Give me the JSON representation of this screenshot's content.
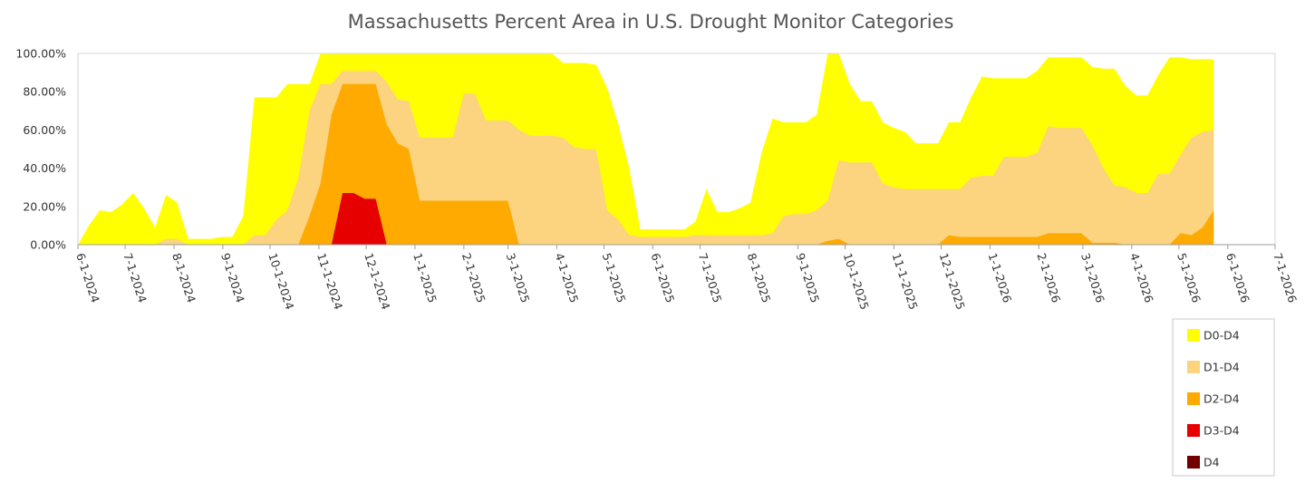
{
  "chart_data": {
    "type": "area",
    "title": "Massachusetts Percent Area in U.S. Drought Monitor Categories",
    "xlabel": "",
    "ylabel": "",
    "ylim": [
      0,
      100
    ],
    "xlim": [
      "6-1-2024",
      "7-1-2026"
    ],
    "grid": false,
    "stacked": false,
    "legend_position": "bottom-right",
    "y_ticks": [
      "0.00%",
      "20.00%",
      "40.00%",
      "60.00%",
      "80.00%",
      "100.00%"
    ],
    "x_ticks": [
      "6-1-2024",
      "7-1-2024",
      "8-1-2024",
      "9-1-2024",
      "10-1-2024",
      "11-1-2024",
      "12-1-2024",
      "1-1-2025",
      "2-1-2025",
      "3-1-2025",
      "4-1-2025",
      "5-1-2025",
      "6-1-2025",
      "7-1-2025",
      "8-1-2025",
      "9-1-2025",
      "10-1-2025",
      "11-1-2025",
      "12-1-2025",
      "1-1-2026",
      "2-1-2026",
      "3-1-2026",
      "4-1-2026",
      "5-1-2026",
      "6-1-2026",
      "7-1-2026"
    ],
    "series": [
      {
        "name": "D0-D4",
        "color": "#FFFF00",
        "points": [
          [
            "2024-06-01",
            0
          ],
          [
            "2024-06-08",
            10
          ],
          [
            "2024-06-15",
            18
          ],
          [
            "2024-06-22",
            17
          ],
          [
            "2024-06-29",
            21
          ],
          [
            "2024-07-06",
            27
          ],
          [
            "2024-07-13",
            19
          ],
          [
            "2024-07-20",
            9
          ],
          [
            "2024-07-27",
            26
          ],
          [
            "2024-08-03",
            22
          ],
          [
            "2024-08-10",
            3
          ],
          [
            "2024-08-17",
            3
          ],
          [
            "2024-08-24",
            3
          ],
          [
            "2024-08-31",
            4
          ],
          [
            "2024-09-07",
            4
          ],
          [
            "2024-09-14",
            15
          ],
          [
            "2024-09-21",
            77
          ],
          [
            "2024-09-28",
            77
          ],
          [
            "2024-10-05",
            77
          ],
          [
            "2024-10-12",
            84
          ],
          [
            "2024-10-19",
            84
          ],
          [
            "2024-10-26",
            84
          ],
          [
            "2024-11-02",
            100
          ],
          [
            "2024-11-09",
            100
          ],
          [
            "2024-11-16",
            100
          ],
          [
            "2024-11-23",
            100
          ],
          [
            "2024-11-30",
            100
          ],
          [
            "2024-12-07",
            100
          ],
          [
            "2024-12-14",
            100
          ],
          [
            "2024-12-21",
            100
          ],
          [
            "2024-12-28",
            100
          ],
          [
            "2025-01-04",
            100
          ],
          [
            "2025-01-11",
            100
          ],
          [
            "2025-01-18",
            100
          ],
          [
            "2025-01-25",
            100
          ],
          [
            "2025-02-01",
            100
          ],
          [
            "2025-02-08",
            100
          ],
          [
            "2025-02-15",
            100
          ],
          [
            "2025-02-22",
            100
          ],
          [
            "2025-03-01",
            100
          ],
          [
            "2025-03-08",
            100
          ],
          [
            "2025-03-15",
            100
          ],
          [
            "2025-03-22",
            100
          ],
          [
            "2025-03-29",
            100
          ],
          [
            "2025-04-05",
            95
          ],
          [
            "2025-04-12",
            95
          ],
          [
            "2025-04-19",
            95
          ],
          [
            "2025-04-26",
            94
          ],
          [
            "2025-05-03",
            82
          ],
          [
            "2025-05-10",
            63
          ],
          [
            "2025-05-17",
            40
          ],
          [
            "2025-05-24",
            8
          ],
          [
            "2025-05-31",
            8
          ],
          [
            "2025-06-07",
            8
          ],
          [
            "2025-06-14",
            8
          ],
          [
            "2025-06-21",
            8
          ],
          [
            "2025-06-28",
            12
          ],
          [
            "2025-07-05",
            29
          ],
          [
            "2025-07-12",
            17
          ],
          [
            "2025-07-19",
            17
          ],
          [
            "2025-07-26",
            19
          ],
          [
            "2025-08-02",
            22
          ],
          [
            "2025-08-09",
            48
          ],
          [
            "2025-08-16",
            66
          ],
          [
            "2025-08-23",
            64
          ],
          [
            "2025-08-30",
            64
          ],
          [
            "2025-09-06",
            64
          ],
          [
            "2025-09-13",
            68
          ],
          [
            "2025-09-20",
            100
          ],
          [
            "2025-09-27",
            100
          ],
          [
            "2025-10-04",
            84
          ],
          [
            "2025-10-11",
            75
          ],
          [
            "2025-10-18",
            75
          ],
          [
            "2025-10-25",
            64
          ],
          [
            "2025-11-01",
            61
          ],
          [
            "2025-11-08",
            59
          ],
          [
            "2025-11-15",
            53
          ],
          [
            "2025-11-22",
            53
          ],
          [
            "2025-11-29",
            53
          ],
          [
            "2025-12-06",
            64
          ],
          [
            "2025-12-13",
            64
          ],
          [
            "2025-12-20",
            77
          ],
          [
            "2025-12-27",
            88
          ],
          [
            "2026-01-03",
            87
          ],
          [
            "2026-01-10",
            87
          ],
          [
            "2026-01-17",
            87
          ],
          [
            "2026-01-24",
            87
          ],
          [
            "2026-01-31",
            91
          ],
          [
            "2026-02-07",
            98
          ],
          [
            "2026-02-14",
            98
          ],
          [
            "2026-02-21",
            98
          ],
          [
            "2026-02-28",
            98
          ],
          [
            "2026-03-07",
            93
          ],
          [
            "2026-03-14",
            92
          ],
          [
            "2026-03-21",
            92
          ],
          [
            "2026-03-28",
            83
          ],
          [
            "2026-04-04",
            78
          ],
          [
            "2026-04-11",
            78
          ],
          [
            "2026-04-18",
            89
          ],
          [
            "2026-04-25",
            98
          ],
          [
            "2026-05-02",
            98
          ],
          [
            "2026-05-09",
            97
          ],
          [
            "2026-05-16",
            97
          ],
          [
            "2026-05-23",
            97
          ]
        ]
      },
      {
        "name": "D1-D4",
        "color": "#FCD37F",
        "points": [
          [
            "2024-06-01",
            0
          ],
          [
            "2024-07-20",
            0
          ],
          [
            "2024-07-27",
            3
          ],
          [
            "2024-08-03",
            3
          ],
          [
            "2024-08-10",
            0
          ],
          [
            "2024-09-14",
            0
          ],
          [
            "2024-09-21",
            5
          ],
          [
            "2024-09-28",
            5
          ],
          [
            "2024-10-05",
            13
          ],
          [
            "2024-10-12",
            18
          ],
          [
            "2024-10-19",
            35
          ],
          [
            "2024-10-26",
            70
          ],
          [
            "2024-11-02",
            84
          ],
          [
            "2024-11-09",
            84
          ],
          [
            "2024-11-16",
            91
          ],
          [
            "2024-11-23",
            91
          ],
          [
            "2024-11-30",
            91
          ],
          [
            "2024-12-07",
            91
          ],
          [
            "2024-12-14",
            85
          ],
          [
            "2024-12-21",
            76
          ],
          [
            "2024-12-28",
            75
          ],
          [
            "2025-01-04",
            56
          ],
          [
            "2025-01-11",
            56
          ],
          [
            "2025-01-18",
            56
          ],
          [
            "2025-01-25",
            56
          ],
          [
            "2025-02-01",
            79
          ],
          [
            "2025-02-08",
            79
          ],
          [
            "2025-02-15",
            65
          ],
          [
            "2025-02-22",
            65
          ],
          [
            "2025-03-01",
            65
          ],
          [
            "2025-03-08",
            60
          ],
          [
            "2025-03-15",
            57
          ],
          [
            "2025-03-22",
            57
          ],
          [
            "2025-03-29",
            57
          ],
          [
            "2025-04-05",
            56
          ],
          [
            "2025-04-12",
            51
          ],
          [
            "2025-04-19",
            50
          ],
          [
            "2025-04-26",
            50
          ],
          [
            "2025-05-03",
            18
          ],
          [
            "2025-05-10",
            13
          ],
          [
            "2025-05-17",
            5
          ],
          [
            "2025-05-24",
            4
          ],
          [
            "2025-06-21",
            4
          ],
          [
            "2025-06-28",
            5
          ],
          [
            "2025-08-09",
            5
          ],
          [
            "2025-08-16",
            6
          ],
          [
            "2025-08-23",
            15
          ],
          [
            "2025-08-30",
            16
          ],
          [
            "2025-09-06",
            16
          ],
          [
            "2025-09-13",
            18
          ],
          [
            "2025-09-20",
            23
          ],
          [
            "2025-09-27",
            44
          ],
          [
            "2025-10-04",
            43
          ],
          [
            "2025-10-11",
            43
          ],
          [
            "2025-10-18",
            43
          ],
          [
            "2025-10-25",
            32
          ],
          [
            "2025-11-01",
            30
          ],
          [
            "2025-11-08",
            29
          ],
          [
            "2025-12-13",
            29
          ],
          [
            "2025-12-20",
            35
          ],
          [
            "2025-12-27",
            36
          ],
          [
            "2026-01-03",
            36
          ],
          [
            "2026-01-10",
            46
          ],
          [
            "2026-01-17",
            46
          ],
          [
            "2026-01-24",
            46
          ],
          [
            "2026-01-31",
            48
          ],
          [
            "2026-02-07",
            62
          ],
          [
            "2026-02-14",
            61
          ],
          [
            "2026-02-21",
            61
          ],
          [
            "2026-02-28",
            61
          ],
          [
            "2026-03-07",
            52
          ],
          [
            "2026-03-14",
            40
          ],
          [
            "2026-03-21",
            31
          ],
          [
            "2026-03-28",
            30
          ],
          [
            "2026-04-04",
            27
          ],
          [
            "2026-04-11",
            27
          ],
          [
            "2026-04-18",
            37
          ],
          [
            "2026-04-25",
            37
          ],
          [
            "2026-05-02",
            47
          ],
          [
            "2026-05-09",
            56
          ],
          [
            "2026-05-16",
            59
          ],
          [
            "2026-05-23",
            60
          ]
        ]
      },
      {
        "name": "D2-D4",
        "color": "#FFAA00",
        "points": [
          [
            "2024-06-01",
            0
          ],
          [
            "2024-10-19",
            0
          ],
          [
            "2024-10-26",
            15
          ],
          [
            "2024-11-02",
            32
          ],
          [
            "2024-11-09",
            68
          ],
          [
            "2024-11-16",
            84
          ],
          [
            "2024-11-23",
            84
          ],
          [
            "2024-11-30",
            84
          ],
          [
            "2024-12-07",
            84
          ],
          [
            "2024-12-14",
            63
          ],
          [
            "2024-12-21",
            53
          ],
          [
            "2024-12-28",
            50
          ],
          [
            "2025-01-04",
            23
          ],
          [
            "2025-02-22",
            23
          ],
          [
            "2025-03-01",
            23
          ],
          [
            "2025-03-08",
            0
          ],
          [
            "2025-09-13",
            0
          ],
          [
            "2025-09-20",
            2
          ],
          [
            "2025-09-27",
            3
          ],
          [
            "2025-10-04",
            0
          ],
          [
            "2025-11-29",
            0
          ],
          [
            "2025-12-06",
            5
          ],
          [
            "2025-12-13",
            4
          ],
          [
            "2026-01-31",
            4
          ],
          [
            "2026-02-07",
            6
          ],
          [
            "2026-02-14",
            6
          ],
          [
            "2026-02-21",
            6
          ],
          [
            "2026-02-28",
            6
          ],
          [
            "2026-03-07",
            1
          ],
          [
            "2026-03-14",
            1
          ],
          [
            "2026-03-21",
            1
          ],
          [
            "2026-03-28",
            0
          ],
          [
            "2026-04-25",
            0
          ],
          [
            "2026-05-02",
            6
          ],
          [
            "2026-05-09",
            5
          ],
          [
            "2026-05-16",
            9
          ],
          [
            "2026-05-23",
            18
          ]
        ]
      },
      {
        "name": "D3-D4",
        "color": "#E60000",
        "points": [
          [
            "2024-06-01",
            0
          ],
          [
            "2024-11-09",
            0
          ],
          [
            "2024-11-16",
            27
          ],
          [
            "2024-11-23",
            27
          ],
          [
            "2024-11-30",
            24
          ],
          [
            "2024-12-07",
            24
          ],
          [
            "2024-12-14",
            0
          ],
          [
            "2026-05-23",
            0
          ]
        ]
      },
      {
        "name": "D4",
        "color": "#730000",
        "points": [
          [
            "2024-06-01",
            0
          ],
          [
            "2026-05-23",
            0
          ]
        ]
      }
    ]
  }
}
